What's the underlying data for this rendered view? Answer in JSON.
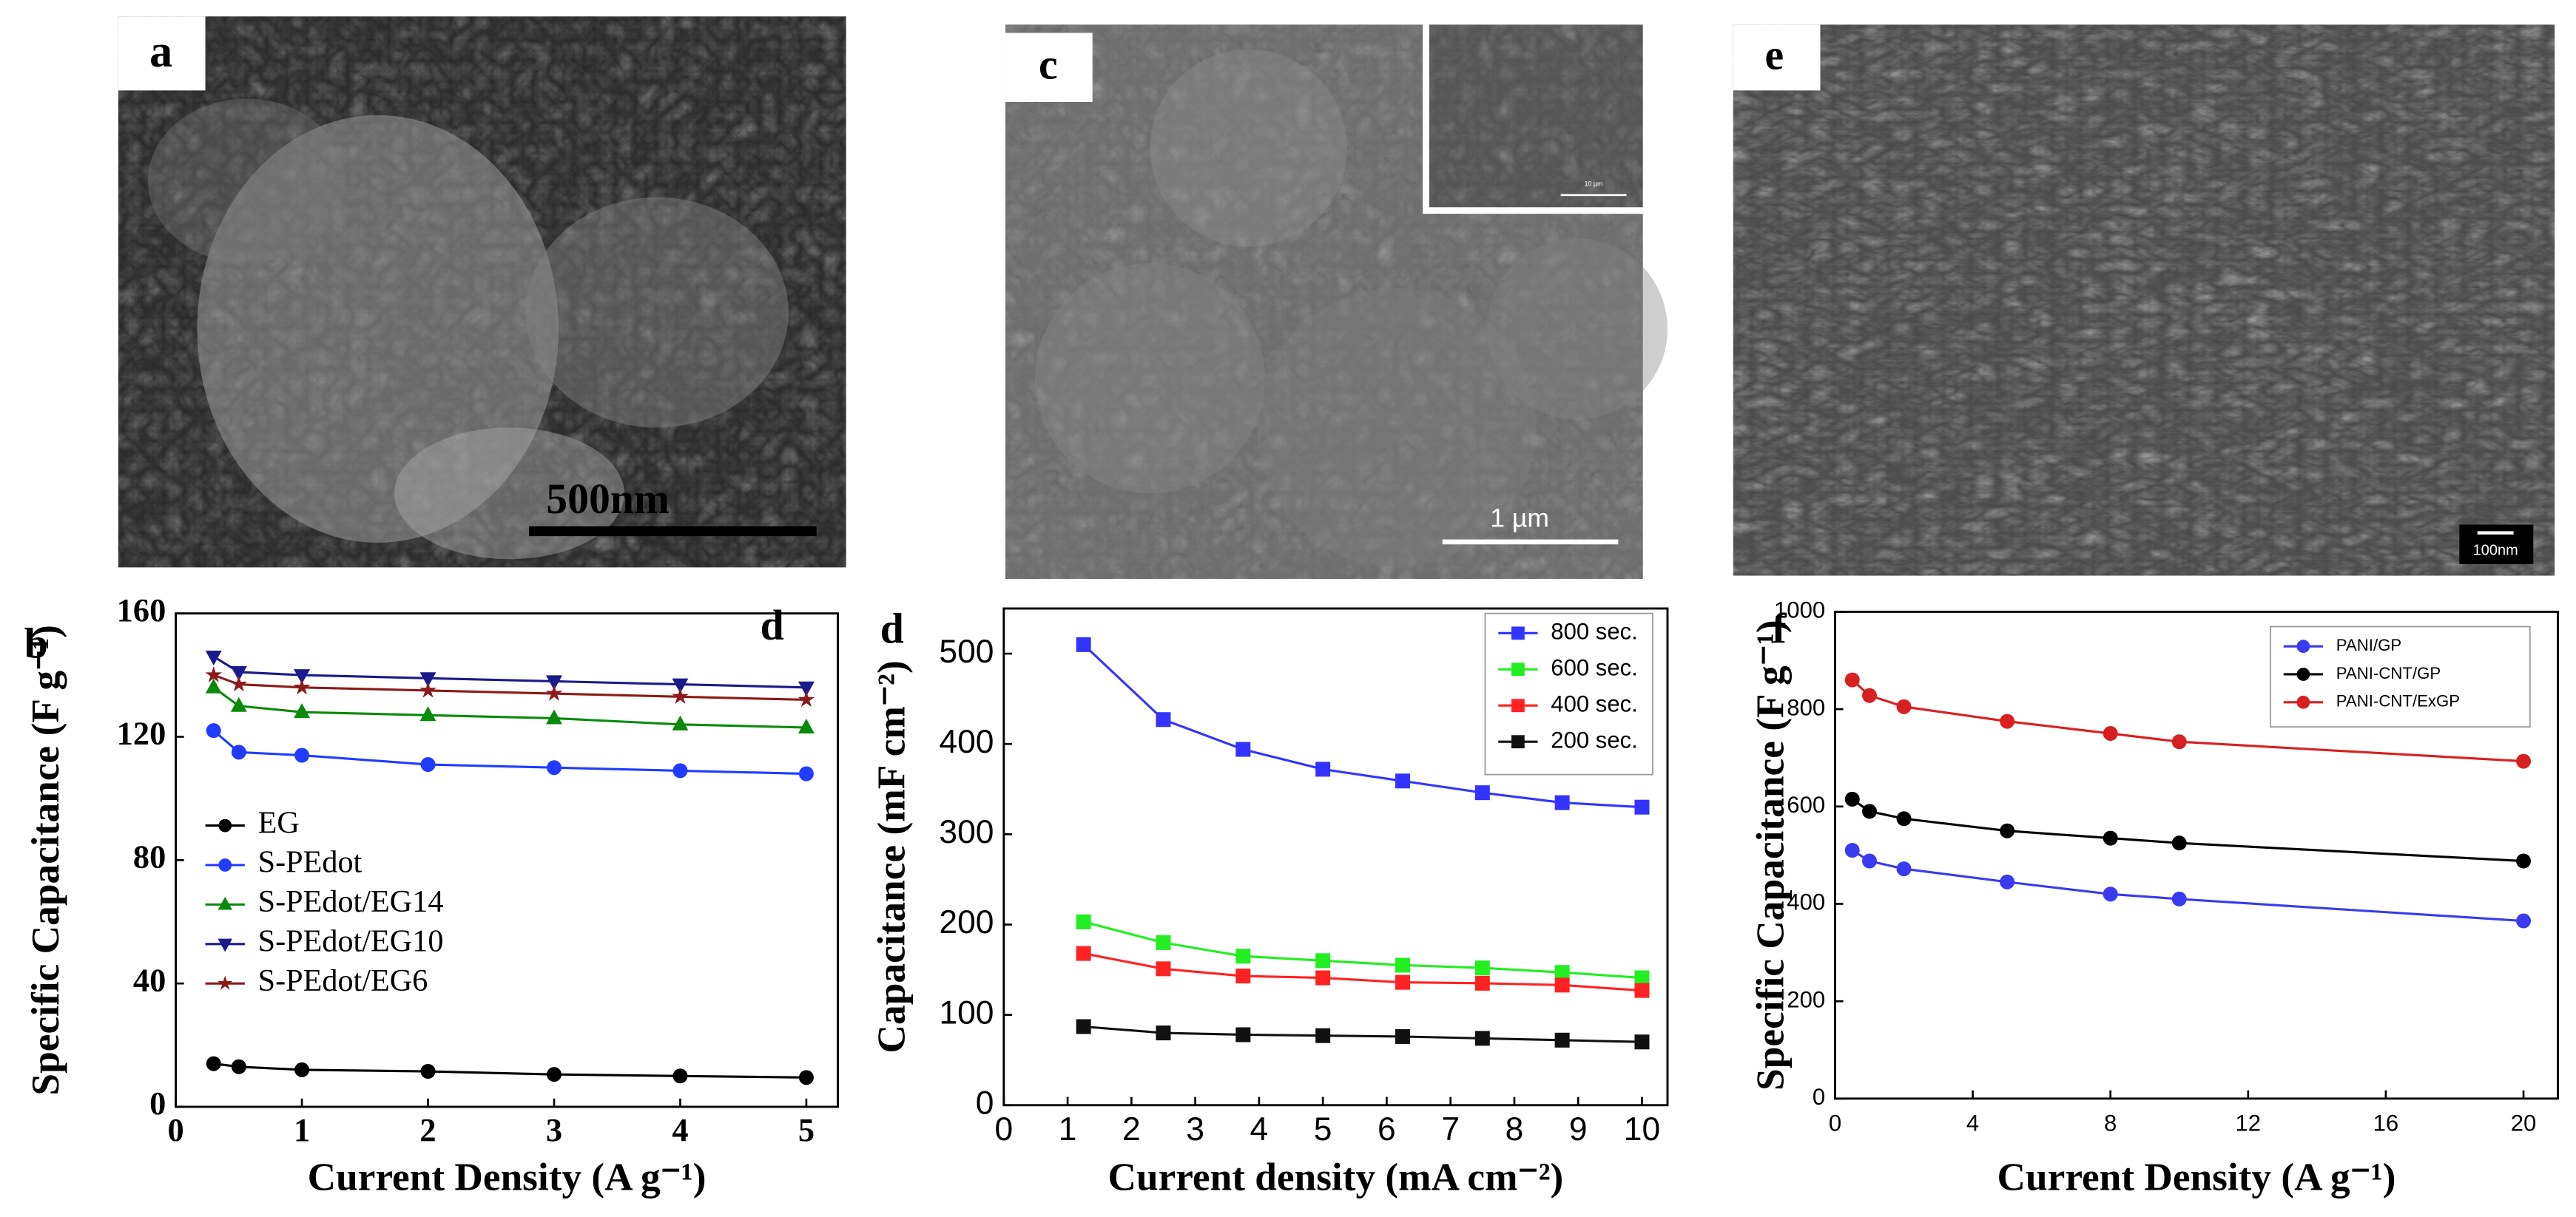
{
  "panels": {
    "labels": [
      "a",
      "c",
      "e",
      "b",
      "d",
      "d",
      "f"
    ],
    "scale_bars": [
      "500nm",
      "1 µm",
      "10 µm",
      "100nm"
    ]
  },
  "chart_data": [
    {
      "type": "line",
      "x_label": "Current Density (A g⁻¹)",
      "y_label": "Specific Capacitance (F g⁻¹)",
      "xlim": [
        0,
        5.25
      ],
      "ylim": [
        0,
        160
      ],
      "xticks": [
        0,
        1,
        2,
        3,
        4,
        5
      ],
      "yticks": [
        0,
        40,
        80,
        120,
        160
      ],
      "x": [
        0.3,
        0.5,
        1,
        2,
        3,
        4,
        5
      ],
      "legend": "center left",
      "series": [
        {
          "name": "EG",
          "color": "#000000",
          "marker": "circle",
          "values": [
            14,
            13,
            12,
            11.5,
            10.5,
            10,
            9.5
          ]
        },
        {
          "name": "S-PEdot",
          "color": "#1f3cff",
          "marker": "circle",
          "values": [
            122,
            115,
            114,
            111,
            110,
            109,
            108
          ]
        },
        {
          "name": "S-PEdot/EG14",
          "color": "#0a8a0a",
          "marker": "triangle-up",
          "values": [
            136,
            130,
            128,
            127,
            126,
            124,
            123
          ]
        },
        {
          "name": "S-PEdot/EG10",
          "color": "#1a1a8c",
          "marker": "triangle-down",
          "values": [
            146,
            141,
            140,
            139,
            138,
            137,
            136
          ]
        },
        {
          "name": "S-PEdot/EG6",
          "color": "#8c1a1a",
          "marker": "star",
          "values": [
            140,
            137,
            136,
            135,
            134,
            133,
            132
          ]
        }
      ]
    },
    {
      "type": "line",
      "x_label": "Current density (mA cm⁻²)",
      "y_label": "Capacitance (mF cm⁻²)",
      "xlim": [
        0,
        10.4
      ],
      "ylim": [
        0,
        550
      ],
      "xticks": [
        0,
        1,
        2,
        3,
        4,
        5,
        6,
        7,
        8,
        9,
        10
      ],
      "yticks": [
        0,
        100,
        200,
        300,
        400,
        500
      ],
      "x": [
        1.25,
        2.5,
        3.75,
        5,
        6.25,
        7.5,
        8.75,
        10
      ],
      "legend": "upper right",
      "series": [
        {
          "name": "800 sec.",
          "color": "#3333ff",
          "marker": "square",
          "values": [
            510,
            427,
            394,
            372,
            359,
            346,
            335,
            330
          ]
        },
        {
          "name": "600 sec.",
          "color": "#22ee22",
          "marker": "square",
          "values": [
            203,
            180,
            165,
            160,
            155,
            152,
            147,
            141
          ]
        },
        {
          "name": "400 sec.",
          "color": "#ff2222",
          "marker": "square",
          "values": [
            168,
            151,
            143,
            141,
            136,
            135,
            133,
            127
          ]
        },
        {
          "name": "200 sec.",
          "color": "#111111",
          "marker": "square",
          "values": [
            87,
            80,
            78,
            77,
            76,
            74,
            72,
            70
          ]
        }
      ]
    },
    {
      "type": "line",
      "x_label": "Current Density (A g⁻¹)",
      "y_label": "Specific Capacitance (F g⁻¹)",
      "xlim": [
        0,
        21
      ],
      "ylim": [
        0,
        1000
      ],
      "xticks": [
        0,
        4,
        8,
        12,
        16,
        20
      ],
      "yticks": [
        0,
        200,
        400,
        600,
        800,
        1000
      ],
      "x": [
        0.5,
        1,
        2,
        5,
        8,
        10,
        20
      ],
      "legend": "upper right",
      "series": [
        {
          "name": "PANI/GP",
          "color": "#3a3af0",
          "marker": "circle",
          "values": [
            510,
            488,
            472,
            445,
            420,
            410,
            365
          ]
        },
        {
          "name": "PANI-CNT/GP",
          "color": "#000000",
          "marker": "circle",
          "values": [
            615,
            590,
            575,
            550,
            535,
            525,
            488
          ]
        },
        {
          "name": "PANI-CNT/ExGP",
          "color": "#d82020",
          "marker": "circle",
          "values": [
            860,
            828,
            805,
            775,
            750,
            733,
            693
          ]
        }
      ]
    }
  ]
}
